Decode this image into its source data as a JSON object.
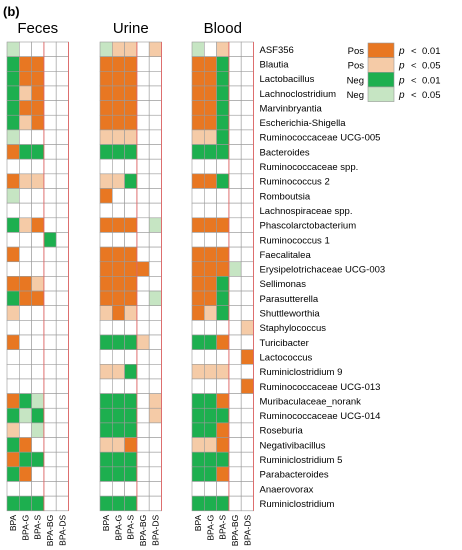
{
  "panel_label": "(b)",
  "colors": {
    "pos_strong": "#E87722",
    "pos_weak": "#F5CBA7",
    "neg_strong": "#1DAF4F",
    "neg_weak": "#C6E5C3",
    "none": "#FFFFFF",
    "grid": "#9A9A9A",
    "separator": "#E06666"
  },
  "chart_data": {
    "type": "heatmap",
    "encoding": {
      "P": "Pos p<0.01",
      "p": "Pos p<0.05",
      "N": "Neg p<0.01",
      "n": "Neg p<0.05",
      ".": "not significant"
    },
    "groups": [
      "Feces",
      "Urine",
      "Blood"
    ],
    "columns": [
      "BPA",
      "BPA-G",
      "BPA-S",
      "BPA-BG",
      "BPA-DS"
    ],
    "rows": [
      "ASF356",
      "Blautia",
      "Lactobacillus",
      "Lachnoclostridium",
      "Marvinbryantia",
      "Escherichia-Shigella",
      "Ruminococcaceae UCG-005",
      "Bacteroides",
      "Ruminococcaceae spp.",
      "Ruminococcus 2",
      "Romboutsia",
      "Lachnospiraceae spp.",
      "Phascolarctobacterium",
      "Ruminococcus 1",
      "Faecalitalea",
      "Erysipelotrichaceae UCG-003",
      "Sellimonas",
      "Parasutterella",
      "Shuttleworthia",
      "Staphylococcus",
      "Turicibacter",
      "Lactococcus",
      "Ruminiclostridium 9",
      "Ruminococcaceae UCG-013",
      "Muribaculaceae_norank",
      "Ruminococcaceae UCG-014",
      "Roseburia",
      "Negativibacillus",
      "Ruminiclostridium 5",
      "Parabacteroides",
      "Anaerovorax",
      "Ruminiclostridium"
    ],
    "cells": {
      "Feces": [
        "n....",
        "NPP..",
        "NPP..",
        "NpP..",
        "NPP..",
        "NpP..",
        "n....",
        "PNN..",
        ".....",
        "Ppp..",
        "n....",
        ".....",
        "NpP..",
        "...N.",
        "P....",
        ".....",
        "PPp..",
        "NPP..",
        "p....",
        ".....",
        "P....",
        ".....",
        ".....",
        ".....",
        "PNn..",
        "NnN..",
        "p.n..",
        "NP...",
        "PNN..",
        "NP...",
        ".....",
        "NNN.."
      ],
      "Urine": [
        "npp.p",
        "PPP..",
        "PPP..",
        "PPP..",
        "PPP..",
        "PPP..",
        "ppp..",
        "NNN..",
        ".....",
        "ppN..",
        "P....",
        ".....",
        "PPP.n",
        ".....",
        "PPP..",
        "PPPP.",
        "PPP..",
        "PPP.n",
        "pPp..",
        ".....",
        "NNNp.",
        ".....",
        "ppN..",
        ".....",
        "NNN.p",
        "NNN.p",
        "NNN..",
        "ppP..",
        "NNN..",
        "NNN..",
        ".....",
        "NNN.."
      ],
      "Blood": [
        "n.p..",
        "PPN..",
        "PPN..",
        "PPN..",
        "PPN..",
        "PPN..",
        "ppN..",
        "NNN..",
        ".....",
        "PPN..",
        ".....",
        ".....",
        "PPP..",
        ".....",
        "PPP..",
        "PPPn.",
        "PPN..",
        "PPN..",
        "PpN..",
        "....p",
        "NNP..",
        "....P",
        "ppp..",
        "....P",
        "NNP..",
        "NNN..",
        "NNP..",
        "ppP..",
        "NNN..",
        "NNP..",
        ".....",
        "NNN.."
      ]
    },
    "legend": [
      {
        "key": "P",
        "sign": "Pos",
        "symbol": "p",
        "rel": "<",
        "value": "0.01"
      },
      {
        "key": "p",
        "sign": "Pos",
        "symbol": "p",
        "rel": "<",
        "value": "0.05"
      },
      {
        "key": "N",
        "sign": "Neg",
        "symbol": "p",
        "rel": "<",
        "value": "0.01"
      },
      {
        "key": "n",
        "sign": "Neg",
        "symbol": "p",
        "rel": "<",
        "value": "0.05"
      }
    ],
    "legend_position": "top-right"
  }
}
